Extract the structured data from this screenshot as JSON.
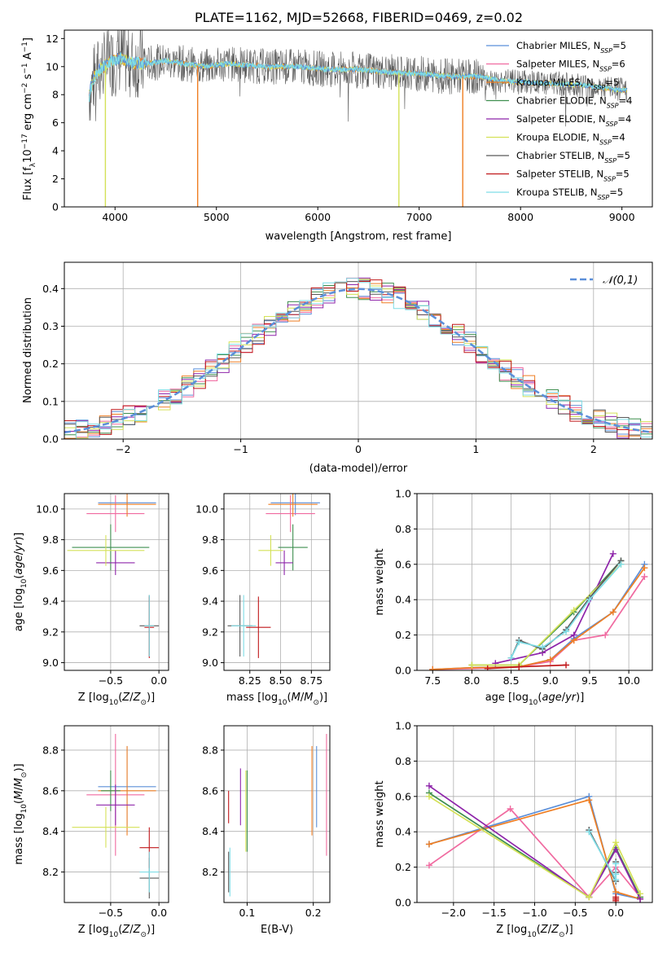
{
  "title": "PLATE=1162, MJD=52668, FIBERID=0469, z=0.02",
  "colors": {
    "chabrier_miles": "#5b8fd9",
    "salpeter_miles": "#f06aa0",
    "kroupa_miles": "#ef7f24",
    "chabrier_elodie": "#3f8f4f",
    "salpeter_elodie": "#8e24aa",
    "kroupa_elodie": "#d4e157",
    "chabrier_stelib": "#595959",
    "salpeter_stelib": "#c0171a",
    "kroupa_stelib": "#7fdde6",
    "normal": "#5b8fd9",
    "grid": "#b0b0b0"
  },
  "chart_data": [
    {
      "type": "line",
      "panel": "spectrum",
      "xlabel": "wavelength [Angstrom, rest frame]",
      "ylabel": "Flux [f_λ10^-17 erg cm^-2 s^-1 A^-1]",
      "xlim": [
        3500,
        9300
      ],
      "ylim": [
        0,
        12.6
      ],
      "xticks": [
        4000,
        5000,
        6000,
        7000,
        8000,
        9000
      ],
      "yticks": [
        0,
        2,
        4,
        6,
        8,
        10,
        12
      ],
      "legend": [
        {
          "label": "Chabrier MILES, N",
          "sub": "SSP",
          "tail": "=5",
          "color": "chabrier_miles"
        },
        {
          "label": "Salpeter MILES, N",
          "sub": "SSP",
          "tail": "=6",
          "color": "salpeter_miles"
        },
        {
          "label": "Kroupa MILES, N",
          "sub": "SSP",
          "tail": "=5",
          "color": "kroupa_miles"
        },
        {
          "label": "Chabrier ELODIE, N",
          "sub": "SSP",
          "tail": "=4",
          "color": "chabrier_elodie"
        },
        {
          "label": "Salpeter ELODIE, N",
          "sub": "SSP",
          "tail": "=4",
          "color": "salpeter_elodie"
        },
        {
          "label": "Kroupa ELODIE, N",
          "sub": "SSP",
          "tail": "=4",
          "color": "kroupa_elodie"
        },
        {
          "label": "Chabrier STELIB, N",
          "sub": "SSP",
          "tail": "=5",
          "color": "chabrier_stelib"
        },
        {
          "label": "Salpeter STELIB, N",
          "sub": "SSP",
          "tail": "=5",
          "color": "salpeter_stelib"
        },
        {
          "label": "Kroupa STELIB, N",
          "sub": "SSP",
          "tail": "=5",
          "color": "kroupa_stelib"
        }
      ],
      "model_continuum": [
        [
          3700,
          5.5
        ],
        [
          3750,
          8.2
        ],
        [
          3800,
          9.3
        ],
        [
          3850,
          9.8
        ],
        [
          3950,
          10.3
        ],
        [
          4050,
          10.6
        ],
        [
          4150,
          10.3
        ],
        [
          4300,
          10.2
        ],
        [
          4500,
          10.4
        ],
        [
          4700,
          10.2
        ],
        [
          4900,
          10.0
        ],
        [
          5100,
          10.2
        ],
        [
          5300,
          10.1
        ],
        [
          5500,
          10.0
        ],
        [
          5800,
          10.0
        ],
        [
          6100,
          9.8
        ],
        [
          6400,
          9.8
        ],
        [
          6700,
          9.6
        ],
        [
          7000,
          9.5
        ],
        [
          7300,
          9.3
        ],
        [
          7600,
          9.3
        ],
        [
          7800,
          9.0
        ],
        [
          8000,
          8.9
        ],
        [
          8300,
          8.8
        ],
        [
          8600,
          8.7
        ],
        [
          8900,
          8.4
        ],
        [
          9050,
          8.3
        ]
      ],
      "dips": [
        {
          "x": 3905,
          "y": 0,
          "color": "kroupa_elodie"
        },
        {
          "x": 4815,
          "y": 0,
          "color": "kroupa_miles"
        },
        {
          "x": 6800,
          "y": 0,
          "color": "kroupa_elodie"
        },
        {
          "x": 7430,
          "y": 0,
          "color": "kroupa_miles"
        }
      ]
    },
    {
      "type": "histogram",
      "panel": "residuals",
      "xlabel": "(data-model)/error",
      "ylabel": "Normed distribution",
      "xlim": [
        -2.5,
        2.5
      ],
      "ylim": [
        0,
        0.47
      ],
      "xticks": [
        -2,
        -1,
        0,
        1,
        2
      ],
      "yticks": [
        0.0,
        0.1,
        0.2,
        0.3,
        0.4
      ],
      "reference_label": "𝒩(0,1)",
      "bin_width": 0.1
    },
    {
      "type": "scatter",
      "panel": "age-Z",
      "xlabel": "Z [log10(Z/Z⊙)]",
      "ylabel": "age  [log10(age/yr)]",
      "xlim": [
        -0.98,
        0.1
      ],
      "ylim": [
        8.95,
        10.1
      ],
      "xticks": [
        -0.5,
        0.0
      ],
      "yticks": [
        9.0,
        9.2,
        9.4,
        9.6,
        9.8,
        10.0
      ],
      "points": [
        {
          "s": "chabrier_miles",
          "x": -0.33,
          "y": 10.04,
          "xe": 0.3,
          "ye": 0.08
        },
        {
          "s": "salpeter_miles",
          "x": -0.45,
          "y": 9.97,
          "xe": 0.3,
          "ye": 0.12
        },
        {
          "s": "kroupa_miles",
          "x": -0.33,
          "y": 10.03,
          "xe": 0.3,
          "ye": 0.08
        },
        {
          "s": "chabrier_elodie",
          "x": -0.5,
          "y": 9.75,
          "xe": 0.4,
          "ye": 0.15
        },
        {
          "s": "salpeter_elodie",
          "x": -0.45,
          "y": 9.65,
          "xe": 0.2,
          "ye": 0.08
        },
        {
          "s": "kroupa_elodie",
          "x": -0.55,
          "y": 9.73,
          "xe": 0.4,
          "ye": 0.1
        },
        {
          "s": "chabrier_stelib",
          "x": -0.1,
          "y": 9.24,
          "xe": 0.1,
          "ye": 0.2
        },
        {
          "s": "salpeter_stelib",
          "x": -0.1,
          "y": 9.23,
          "xe": 0.05,
          "ye": 0.2
        },
        {
          "s": "kroupa_stelib",
          "x": -0.1,
          "y": 9.24,
          "xe": 0.05,
          "ye": 0.2
        }
      ]
    },
    {
      "type": "scatter",
      "panel": "age-mass",
      "xlabel": "mass [log10(M/M⊙)]",
      "ylabel": "",
      "xlim": [
        8.04,
        8.9
      ],
      "ylim": [
        8.95,
        10.1
      ],
      "xticks": [
        8.25,
        8.5,
        8.75
      ],
      "yticks": [
        9.0,
        9.2,
        9.4,
        9.6,
        9.8,
        10.0
      ],
      "points": [
        {
          "s": "chabrier_miles",
          "x": 8.62,
          "y": 10.04,
          "xe": 0.2,
          "ye": 0.08
        },
        {
          "s": "salpeter_miles",
          "x": 8.58,
          "y": 9.97,
          "xe": 0.2,
          "ye": 0.12
        },
        {
          "s": "kroupa_miles",
          "x": 8.6,
          "y": 10.03,
          "xe": 0.2,
          "ye": 0.08
        },
        {
          "s": "chabrier_elodie",
          "x": 8.6,
          "y": 9.75,
          "xe": 0.12,
          "ye": 0.15
        },
        {
          "s": "salpeter_elodie",
          "x": 8.53,
          "y": 9.65,
          "xe": 0.07,
          "ye": 0.08
        },
        {
          "s": "kroupa_elodie",
          "x": 8.42,
          "y": 9.73,
          "xe": 0.1,
          "ye": 0.1
        },
        {
          "s": "chabrier_stelib",
          "x": 8.17,
          "y": 9.24,
          "xe": 0.1,
          "ye": 0.2
        },
        {
          "s": "salpeter_stelib",
          "x": 8.32,
          "y": 9.23,
          "xe": 0.1,
          "ye": 0.2
        },
        {
          "s": "kroupa_stelib",
          "x": 8.2,
          "y": 9.24,
          "xe": 0.1,
          "ye": 0.2
        }
      ]
    },
    {
      "type": "line",
      "panel": "mass-weight-vs-age",
      "xlabel": "age  [log10(age/yr)]",
      "ylabel": "mass weight",
      "xlim": [
        7.3,
        10.3
      ],
      "ylim": [
        0,
        1.0
      ],
      "xticks": [
        7.5,
        8.0,
        8.5,
        9.0,
        9.5,
        10.0,
        "10.0"
      ],
      "yticks": [
        0.0,
        0.2,
        0.4,
        0.6,
        0.8,
        1.0
      ],
      "series": [
        {
          "s": "chabrier_miles",
          "x": [
            7.5,
            8.0,
            8.6,
            9.0,
            9.3,
            9.8,
            10.2
          ],
          "y": [
            0.005,
            0.015,
            0.02,
            0.06,
            0.18,
            0.33,
            0.6
          ]
        },
        {
          "s": "salpeter_miles",
          "x": [
            7.5,
            8.0,
            8.6,
            9.0,
            9.3,
            9.7,
            10.2
          ],
          "y": [
            0.005,
            0.01,
            0.02,
            0.05,
            0.17,
            0.2,
            0.53
          ]
        },
        {
          "s": "kroupa_miles",
          "x": [
            7.5,
            8.0,
            8.6,
            9.0,
            9.3,
            9.8,
            10.2
          ],
          "y": [
            0.005,
            0.015,
            0.02,
            0.06,
            0.17,
            0.33,
            0.58
          ]
        },
        {
          "s": "chabrier_elodie",
          "x": [
            8.0,
            8.6,
            9.3,
            9.9
          ],
          "y": [
            0.03,
            0.03,
            0.33,
            0.62
          ]
        },
        {
          "s": "salpeter_elodie",
          "x": [
            8.3,
            8.9,
            9.3,
            9.8
          ],
          "y": [
            0.04,
            0.1,
            0.2,
            0.66
          ]
        },
        {
          "s": "kroupa_elodie",
          "x": [
            8.0,
            8.6,
            9.3,
            9.9
          ],
          "y": [
            0.03,
            0.03,
            0.34,
            0.6
          ]
        },
        {
          "s": "chabrier_stelib",
          "x": [
            8.5,
            8.6,
            8.9,
            9.2,
            9.5,
            9.9
          ],
          "y": [
            0.07,
            0.17,
            0.12,
            0.23,
            0.41,
            0.62
          ]
        },
        {
          "s": "salpeter_stelib",
          "x": [
            8.2,
            8.6,
            9.2
          ],
          "y": [
            0.01,
            0.02,
            0.03
          ]
        },
        {
          "s": "kroupa_stelib",
          "x": [
            8.5,
            8.6,
            8.9,
            9.2,
            9.5,
            9.9
          ],
          "y": [
            0.07,
            0.16,
            0.13,
            0.22,
            0.4,
            0.6
          ]
        }
      ]
    },
    {
      "type": "scatter",
      "panel": "mass-Z",
      "xlabel": "Z [log10(Z/Z⊙)]",
      "ylabel": "mass [log10(M/M⊙)]",
      "xlim": [
        -0.98,
        0.1
      ],
      "ylim": [
        8.05,
        8.92
      ],
      "xticks": [
        -0.5,
        0.0
      ],
      "yticks": [
        8.2,
        8.4,
        8.6,
        8.8
      ],
      "points": [
        {
          "s": "chabrier_miles",
          "x": -0.33,
          "y": 8.62,
          "xe": 0.3,
          "ye": 0.2
        },
        {
          "s": "salpeter_miles",
          "x": -0.45,
          "y": 8.58,
          "xe": 0.3,
          "ye": 0.3
        },
        {
          "s": "kroupa_miles",
          "x": -0.33,
          "y": 8.6,
          "xe": 0.3,
          "ye": 0.22
        },
        {
          "s": "chabrier_elodie",
          "x": -0.5,
          "y": 8.6,
          "xe": 0.1,
          "ye": 0.1
        },
        {
          "s": "salpeter_elodie",
          "x": -0.45,
          "y": 8.53,
          "xe": 0.2,
          "ye": 0.1
        },
        {
          "s": "kroupa_elodie",
          "x": -0.55,
          "y": 8.42,
          "xe": 0.35,
          "ye": 0.1
        },
        {
          "s": "chabrier_stelib",
          "x": -0.1,
          "y": 8.17,
          "xe": 0.1,
          "ye": 0.1
        },
        {
          "s": "salpeter_stelib",
          "x": -0.1,
          "y": 8.32,
          "xe": 0.1,
          "ye": 0.1
        },
        {
          "s": "kroupa_stelib",
          "x": -0.1,
          "y": 8.2,
          "xe": 0.1,
          "ye": 0.1
        }
      ]
    },
    {
      "type": "scatter",
      "panel": "mass-EBV",
      "xlabel": "E(B-V)",
      "ylabel": "",
      "xlim": [
        0.065,
        0.225
      ],
      "ylim": [
        8.05,
        8.92
      ],
      "xticks": [
        0.1,
        0.2
      ],
      "yticks": [
        8.2,
        8.4,
        8.6,
        8.8
      ],
      "points": [
        {
          "s": "chabrier_miles",
          "x": 0.205,
          "y": 8.62,
          "ye": 0.2
        },
        {
          "s": "salpeter_miles",
          "x": 0.22,
          "y": 8.58,
          "ye": 0.3
        },
        {
          "s": "kroupa_miles",
          "x": 0.198,
          "y": 8.6,
          "ye": 0.22
        },
        {
          "s": "chabrier_elodie",
          "x": 0.1,
          "y": 8.5,
          "ye": 0.2
        },
        {
          "s": "salpeter_elodie",
          "x": 0.09,
          "y": 8.57,
          "ye": 0.14
        },
        {
          "s": "kroupa_elodie",
          "x": 0.098,
          "y": 8.5,
          "ye": 0.2
        },
        {
          "s": "chabrier_stelib",
          "x": 0.072,
          "y": 8.2,
          "ye": 0.1
        },
        {
          "s": "salpeter_stelib",
          "x": 0.072,
          "y": 8.52,
          "ye": 0.08
        },
        {
          "s": "kroupa_stelib",
          "x": 0.074,
          "y": 8.2,
          "ye": 0.12
        }
      ]
    },
    {
      "type": "line",
      "panel": "mass-weight-vs-Z",
      "xlabel": "Z [log10(Z/Z⊙)]",
      "ylabel": "mass weight",
      "xlim": [
        -2.45,
        0.45
      ],
      "ylim": [
        0,
        1.0
      ],
      "xticks": [
        -2.0,
        -1.5,
        -1.0,
        -0.5,
        0.0
      ],
      "yticks": [
        0.0,
        0.2,
        0.4,
        0.6,
        0.8,
        1.0
      ],
      "series": [
        {
          "s": "chabrier_miles",
          "x": [
            -2.3,
            -0.33,
            0.0,
            0.3
          ],
          "y": [
            0.33,
            0.6,
            0.05,
            0.02
          ]
        },
        {
          "s": "salpeter_miles",
          "x": [
            -2.3,
            -1.3,
            -0.33,
            0.0,
            0.3
          ],
          "y": [
            0.21,
            0.53,
            0.03,
            0.2,
            0.03
          ]
        },
        {
          "s": "kroupa_miles",
          "x": [
            -2.3,
            -0.33,
            0.0,
            0.3
          ],
          "y": [
            0.33,
            0.58,
            0.06,
            0.02
          ]
        },
        {
          "s": "chabrier_elodie",
          "x": [
            -2.3,
            -0.33,
            0.0,
            0.3
          ],
          "y": [
            0.62,
            0.03,
            0.31,
            0.03
          ]
        },
        {
          "s": "salpeter_elodie",
          "x": [
            -2.3,
            -0.33,
            0.0,
            0.3
          ],
          "y": [
            0.66,
            0.03,
            0.3,
            0.02
          ]
        },
        {
          "s": "kroupa_elodie",
          "x": [
            -2.3,
            -0.33,
            0.0,
            0.3
          ],
          "y": [
            0.6,
            0.03,
            0.34,
            0.05
          ]
        },
        {
          "s": "chabrier_stelib",
          "x": [
            -0.33,
            0.0,
            0.0,
            0.0
          ],
          "y": [
            0.41,
            0.12,
            0.23,
            0.17
          ]
        },
        {
          "s": "salpeter_stelib",
          "x": [
            0.0,
            0.0,
            0.0
          ],
          "y": [
            0.01,
            0.02,
            0.03
          ]
        },
        {
          "s": "kroupa_stelib",
          "x": [
            -0.33,
            0.0,
            0.0,
            0.0
          ],
          "y": [
            0.4,
            0.13,
            0.22,
            0.16
          ]
        }
      ]
    }
  ]
}
